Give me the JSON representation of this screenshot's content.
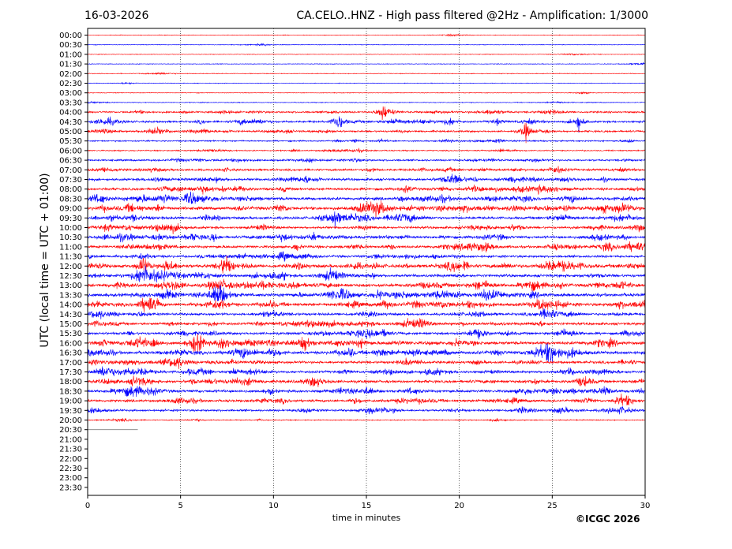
{
  "header": {
    "date": "16-03-2026",
    "title": "CA.CELO..HNZ - High pass filtered @2Hz - Amplification: 1/3000"
  },
  "footer": {
    "copyright": "©ICGC 2026"
  },
  "chart_data": {
    "type": "line",
    "subtype": "helicorder",
    "title": "CA.CELO..HNZ - High pass filtered @2Hz - Amplification: 1/3000",
    "xlabel": "time in minutes",
    "ylabel": "UTC (local time = UTC + 01:00)",
    "xlim": [
      0,
      30
    ],
    "x_ticks": [
      "0",
      "5",
      "10",
      "15",
      "20",
      "25",
      "30"
    ],
    "grid": "vertical dotted lines every 5 minutes",
    "row_labels": [
      "00:00",
      "00:30",
      "01:00",
      "01:30",
      "02:00",
      "02:30",
      "03:00",
      "03:30",
      "04:00",
      "04:30",
      "05:00",
      "05:30",
      "06:00",
      "06:30",
      "07:00",
      "07:30",
      "08:00",
      "08:30",
      "09:00",
      "09:30",
      "10:00",
      "10:30",
      "11:00",
      "11:30",
      "12:00",
      "12:30",
      "13:00",
      "13:30",
      "14:00",
      "14:30",
      "15:00",
      "15:30",
      "16:00",
      "16:30",
      "17:00",
      "17:30",
      "18:00",
      "18:30",
      "19:00",
      "19:30",
      "20:00",
      "20:30",
      "21:00",
      "21:30",
      "22:00",
      "22:30",
      "23:00",
      "23:30"
    ],
    "trace_colors": [
      "#ff0000",
      "#0000ff"
    ],
    "partial_row": {
      "label": "20:30",
      "minutes": 2.7,
      "color": "#808080"
    },
    "row_activity": [
      0.02,
      0.03,
      0.02,
      0.04,
      0.05,
      0.03,
      0.04,
      0.08,
      0.35,
      0.45,
      0.4,
      0.25,
      0.2,
      0.35,
      0.45,
      0.55,
      0.6,
      0.7,
      0.75,
      0.65,
      0.55,
      0.6,
      0.6,
      0.55,
      0.8,
      0.7,
      0.75,
      0.8,
      0.75,
      0.55,
      0.6,
      0.6,
      0.8,
      0.75,
      0.6,
      0.6,
      0.65,
      0.65,
      0.55,
      0.45,
      0.15
    ],
    "events": [
      {
        "row": "04:00",
        "minute": 15.9,
        "amplitude": "large"
      },
      {
        "row": "04:30",
        "minute": 13.5,
        "amplitude": "large"
      },
      {
        "row": "04:30",
        "minute": 26.4,
        "amplitude": "large"
      },
      {
        "row": "05:00",
        "minute": 23.6,
        "amplitude": "large"
      },
      {
        "row": "09:30",
        "minute": 13.3,
        "amplitude": "large"
      },
      {
        "row": "12:00",
        "minute": 3.0,
        "amplitude": "large"
      },
      {
        "row": "12:00",
        "minute": 7.4,
        "amplitude": "large"
      },
      {
        "row": "14:00",
        "minute": 3.3,
        "amplitude": "large"
      },
      {
        "row": "16:00",
        "minute": 5.8,
        "amplitude": "large"
      },
      {
        "row": "16:00",
        "minute": 7.3,
        "amplitude": "large"
      },
      {
        "row": "16:00",
        "minute": 11.7,
        "amplitude": "large"
      },
      {
        "row": "16:30",
        "minute": 24.9,
        "amplitude": "large"
      }
    ]
  }
}
